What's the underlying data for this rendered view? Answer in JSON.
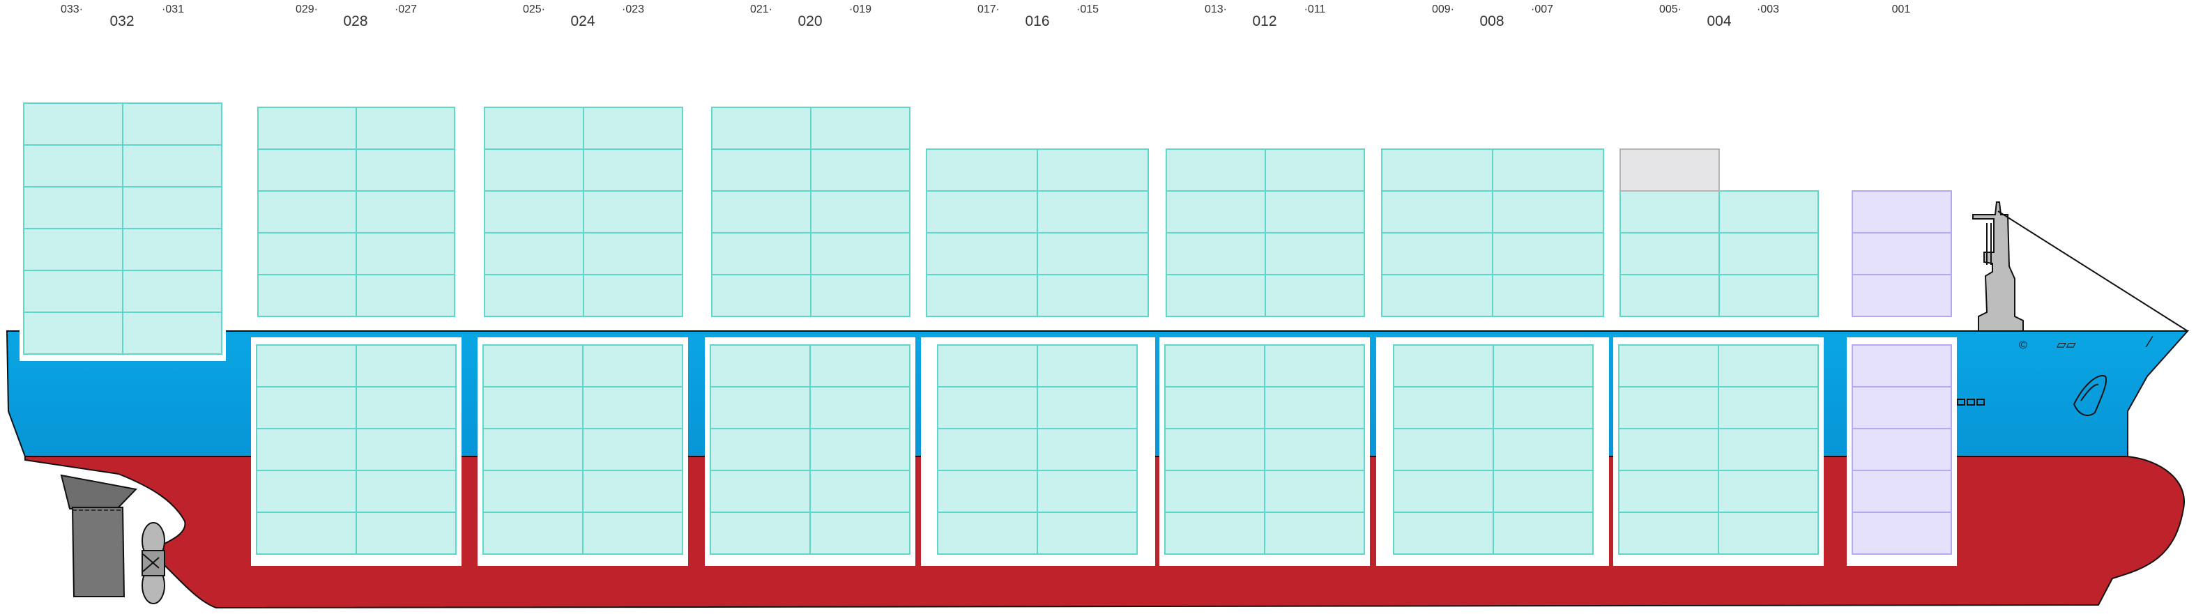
{
  "bays": [
    {
      "label": "032",
      "left": "033",
      "right": "031"
    },
    {
      "label": "028",
      "left": "029",
      "right": "027"
    },
    {
      "label": "024",
      "left": "025",
      "right": "023"
    },
    {
      "label": "020",
      "left": "021",
      "right": "019"
    },
    {
      "label": "016",
      "left": "017",
      "right": "015"
    },
    {
      "label": "012",
      "left": "013",
      "right": "011"
    },
    {
      "label": "008",
      "left": "009",
      "right": "007"
    },
    {
      "label": "004",
      "left": "005",
      "right": "003"
    },
    {
      "label": "",
      "left": "",
      "right": "001"
    }
  ],
  "deck_tiers": [
    6,
    5,
    5,
    5,
    4,
    4,
    4,
    3,
    3
  ],
  "hold_tiers": [
    0,
    5,
    5,
    5,
    5,
    5,
    5,
    5,
    5
  ],
  "special_slots": [
    {
      "bay": "004",
      "zone": "deck",
      "tier": "top",
      "color": "#e5e5e7",
      "note": "grey block"
    },
    {
      "bay": "001",
      "zone": "deck+hold",
      "color": "#e6e1fb",
      "stroke": "#b7a7ee",
      "note": "lavender bay"
    }
  ],
  "colors": {
    "slot_fill": "#c9f2ee",
    "slot_stroke": "#5fd6c7",
    "hull_upper_blue": "#04a7e6",
    "hull_upper_blue_dark": "#0b90cf",
    "hull_lower_red": "#be232b",
    "deckhouse_grey": "#b9b9b9",
    "rudder_grey": "#707070"
  },
  "hull_markings": {
    "mark_1": "©",
    "mark_2": "▱▱",
    "mark_3": "⁄"
  }
}
